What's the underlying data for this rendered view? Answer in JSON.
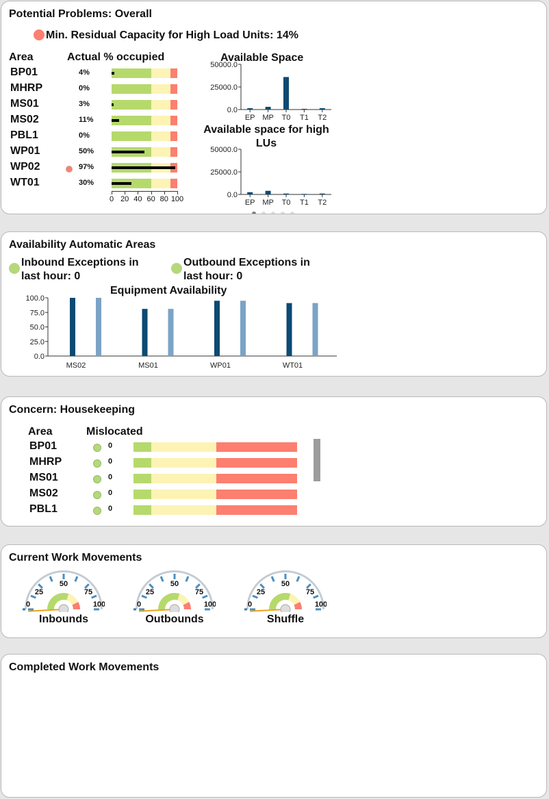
{
  "potential": {
    "title": "Potential Problems: Overall",
    "capacity_text": "Min. Residual Capacity for High Load Units: 14%",
    "col_area": "Area",
    "col_occupied": "Actual % occupied",
    "rows": [
      {
        "area": "BP01",
        "pct_label": "4%",
        "pct": 4,
        "alert": false
      },
      {
        "area": "MHRP",
        "pct_label": "0%",
        "pct": 0,
        "alert": false
      },
      {
        "area": "MS01",
        "pct_label": "3%",
        "pct": 3,
        "alert": false
      },
      {
        "area": "MS02",
        "pct_label": "11%",
        "pct": 11,
        "alert": false
      },
      {
        "area": "PBL1",
        "pct_label": "0%",
        "pct": 0,
        "alert": false
      },
      {
        "area": "WP01",
        "pct_label": "50%",
        "pct": 50,
        "alert": false
      },
      {
        "area": "WP02",
        "pct_label": "97%",
        "pct": 97,
        "alert": true
      },
      {
        "area": "WT01",
        "pct_label": "30%",
        "pct": 30,
        "alert": false
      }
    ],
    "bullet_ranges": [
      60,
      90,
      100
    ],
    "bullet_ticks": [
      "0",
      "20",
      "40",
      "60",
      "80",
      "100"
    ],
    "available_space": {
      "title": "Available Space",
      "categories": [
        "EP",
        "MP",
        "T0",
        "T1",
        "T2"
      ],
      "values": [
        1500,
        3000,
        36000,
        800,
        1500
      ],
      "yticks": [
        "50000.0",
        "25000.0",
        "0.0"
      ],
      "ymax": 50000
    },
    "available_high": {
      "title_line1": "Available space for high",
      "title_line2": "LUs",
      "categories": [
        "EP",
        "MP",
        "T0",
        "T1",
        "T2"
      ],
      "values": [
        2500,
        4000,
        1000,
        600,
        1000
      ],
      "yticks": [
        "50000.0",
        "25000.0",
        "0.0"
      ],
      "ymax": 50000
    }
  },
  "availability": {
    "title": "Availability Automatic Areas",
    "inbound_line1": "Inbound Exceptions in",
    "inbound_line2": "last hour: 0",
    "outbound_line1": "Outbound Exceptions in",
    "outbound_line2": "last hour: 0",
    "chart_title": "Equipment Availability",
    "yticks": [
      "100.0",
      "75.0",
      "50.0",
      "25.0",
      "0.0"
    ]
  },
  "chart_data": {
    "type": "bar",
    "title": "Equipment Availability",
    "categories": [
      "MS02",
      "MS01",
      "WP01",
      "WT01"
    ],
    "series": [
      {
        "values": [
          100,
          81,
          95,
          91
        ]
      },
      {
        "values": [
          100,
          81,
          95,
          91
        ]
      }
    ],
    "ylim": [
      0,
      100
    ],
    "colors": [
      "#0d4a72",
      "#7ba3c6"
    ]
  },
  "housekeeping": {
    "title": "Concern: Housekeeping",
    "col_area": "Area",
    "col_mislocated": "Mislocated",
    "rows": [
      {
        "area": "BP01",
        "count": "0"
      },
      {
        "area": "MHRP",
        "count": "0"
      },
      {
        "area": "MS01",
        "count": "0"
      },
      {
        "area": "MS02",
        "count": "0"
      },
      {
        "area": "PBL1",
        "count": "0"
      }
    ]
  },
  "current": {
    "title": "Current Work Movements",
    "gauges": [
      {
        "label": "Inbounds",
        "value": 0
      },
      {
        "label": "Outbounds",
        "value": 0
      },
      {
        "label": "Shuffle",
        "value": 0
      }
    ],
    "gauge_ticks": [
      "0",
      "25",
      "50",
      "75",
      "100"
    ]
  },
  "completed": {
    "title": "Completed Work Movements"
  },
  "colors": {
    "green": "#b6d96c",
    "yellow": "#fdf3b4",
    "red": "#fc7f70",
    "dark_blue": "#0d4a72",
    "light_blue": "#7ba3c6",
    "dot_green": "#b5d87a"
  }
}
